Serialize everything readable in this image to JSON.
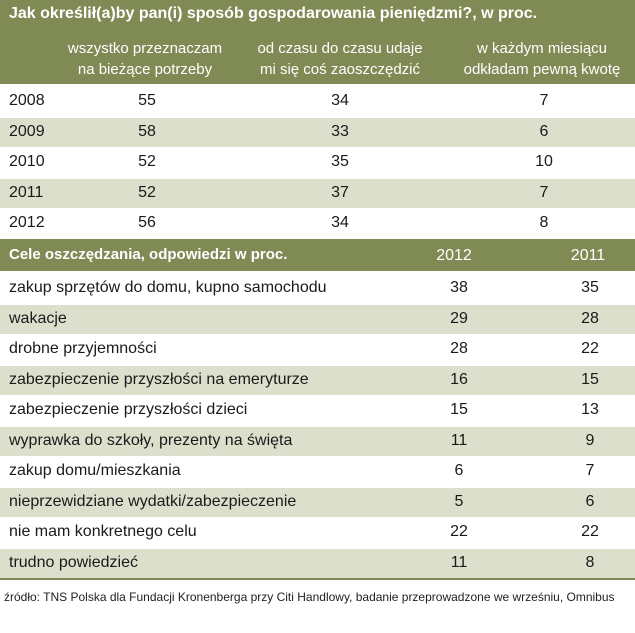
{
  "chart_data": [
    {
      "type": "table",
      "title": "Jak określił(a)by pan(i) sposób gospodarowania pieniędzmi?, w proc.",
      "columns": [
        [
          "wszystko przeznaczam",
          "na bieżące potrzeby"
        ],
        [
          "od czasu do czasu udaje",
          "mi się coś zaoszczędzić"
        ],
        [
          "w każdym miesiącu",
          "odkładam pewną kwotę"
        ]
      ],
      "rows": [
        {
          "label": "2008",
          "values": [
            "55",
            "34",
            "7"
          ]
        },
        {
          "label": "2009",
          "values": [
            "58",
            "33",
            "6"
          ]
        },
        {
          "label": "2010",
          "values": [
            "52",
            "35",
            "10"
          ]
        },
        {
          "label": "2011",
          "values": [
            "52",
            "37",
            "7"
          ]
        },
        {
          "label": "2012",
          "values": [
            "56",
            "34",
            "8"
          ]
        }
      ]
    },
    {
      "type": "table",
      "title": "Cele oszczędzania, odpowiedzi w proc.",
      "columns": [
        "2012",
        "2011"
      ],
      "rows": [
        {
          "label": "zakup sprzętów do domu, kupno samochodu",
          "values": [
            "38",
            "35"
          ]
        },
        {
          "label": "wakacje",
          "values": [
            "29",
            "28"
          ]
        },
        {
          "label": "drobne przyjemności",
          "values": [
            "28",
            "22"
          ]
        },
        {
          "label": "zabezpieczenie przyszłości na emeryturze",
          "values": [
            "16",
            "15"
          ]
        },
        {
          "label": "zabezpieczenie przyszłości dzieci",
          "values": [
            "15",
            "13"
          ]
        },
        {
          "label": "wyprawka do szkoły, prezenty na święta",
          "values": [
            "11",
            "9"
          ]
        },
        {
          "label": "zakup domu/mieszkania",
          "values": [
            "6",
            "7"
          ]
        },
        {
          "label": "nieprzewidziane wydatki/zabezpieczenie",
          "values": [
            "5",
            "6"
          ]
        },
        {
          "label": "nie mam konkretnego celu",
          "values": [
            "22",
            "22"
          ]
        },
        {
          "label": "trudno powiedzieć",
          "values": [
            "11",
            "8"
          ]
        }
      ]
    }
  ],
  "source": "źródło: TNS Polska dla Fundacji Kronenberga przy Citi Handlowy, badanie przeprowadzone we wrześniu, Omnibus",
  "colors": {
    "header": "#7f8a55",
    "shade": "#dcdfcc"
  }
}
